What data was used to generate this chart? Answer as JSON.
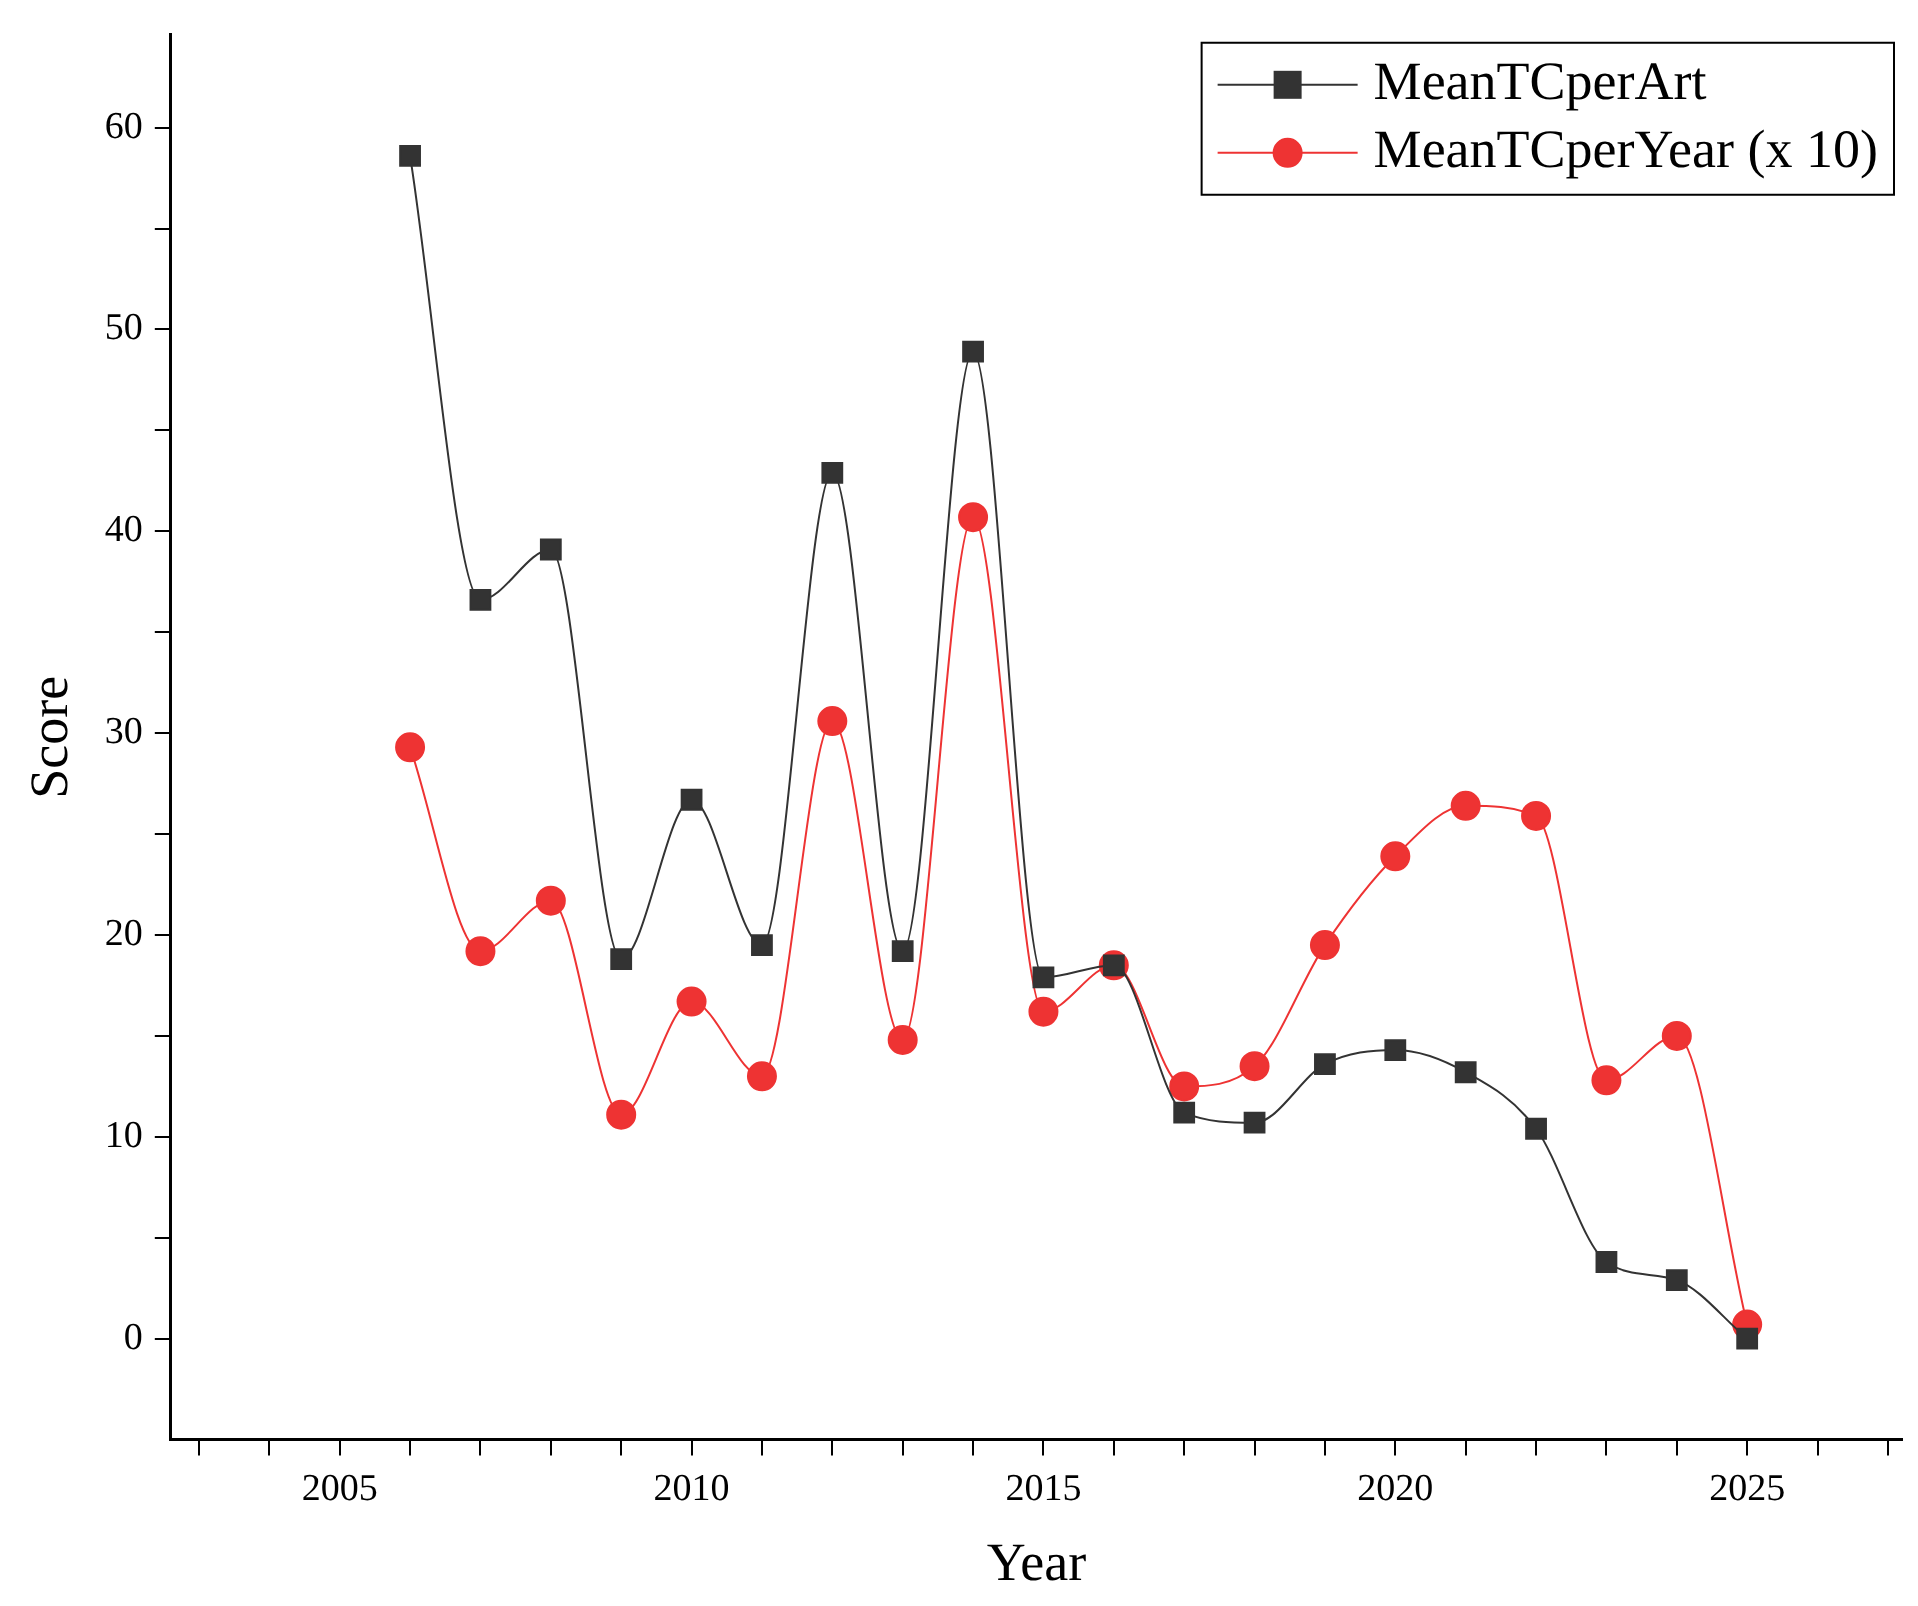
{
  "chart_data": {
    "type": "line",
    "xlabel": "Year",
    "ylabel": "Score",
    "x": [
      2006,
      2007,
      2008,
      2009,
      2010,
      2011,
      2012,
      2013,
      2014,
      2015,
      2016,
      2017,
      2018,
      2019,
      2020,
      2021,
      2022,
      2023,
      2024,
      2025
    ],
    "series": [
      {
        "name": "MeanTCperArt",
        "color": "#333333",
        "marker": "square",
        "values": [
          58.6,
          36.6,
          39.1,
          18.8,
          26.7,
          19.5,
          42.9,
          19.2,
          48.9,
          17.9,
          18.5,
          11.2,
          10.7,
          13.6,
          14.3,
          13.2,
          10.4,
          3.8,
          2.9,
          0
        ]
      },
      {
        "name": "MeanTCperYear (x 10)",
        "color": "#ee3333",
        "marker": "circle",
        "values": [
          29.3,
          19.2,
          21.7,
          11.1,
          16.7,
          13.0,
          30.6,
          14.8,
          40.7,
          16.2,
          18.5,
          12.5,
          13.5,
          19.5,
          23.9,
          26.4,
          25.9,
          12.8,
          15.0,
          0.7
        ]
      }
    ],
    "xlim": [
      2002.6,
      2027.2
    ],
    "xticks": [
      {
        "value": 2003,
        "label": null
      },
      {
        "value": 2004,
        "label": null
      },
      2005,
      {
        "value": 2006,
        "label": null
      },
      {
        "value": 2007,
        "label": null
      },
      {
        "value": 2008,
        "label": null
      },
      {
        "value": 2009,
        "label": null
      },
      2010,
      {
        "value": 2011,
        "label": null
      },
      {
        "value": 2012,
        "label": null
      },
      {
        "value": 2013,
        "label": null
      },
      {
        "value": 2014,
        "label": null
      },
      2015,
      {
        "value": 2016,
        "label": null
      },
      {
        "value": 2017,
        "label": null
      },
      {
        "value": 2018,
        "label": null
      },
      {
        "value": 2019,
        "label": null
      },
      2020,
      {
        "value": 2021,
        "label": null
      },
      {
        "value": 2022,
        "label": null
      },
      {
        "value": 2023,
        "label": null
      },
      {
        "value": 2024,
        "label": null
      },
      2025,
      {
        "value": 2026,
        "label": null
      },
      {
        "value": 2027,
        "label": null
      }
    ],
    "ylim": [
      -5,
      64.6
    ],
    "yticks": [
      0,
      {
        "value": 5,
        "label": null
      },
      10,
      {
        "value": 15,
        "label": null
      },
      20,
      {
        "value": 25,
        "label": null
      },
      30,
      {
        "value": 35,
        "label": null
      },
      40,
      {
        "value": 45,
        "label": null
      },
      50,
      {
        "value": 55,
        "label": null
      },
      60
    ],
    "grid": false,
    "legend": "top right"
  }
}
